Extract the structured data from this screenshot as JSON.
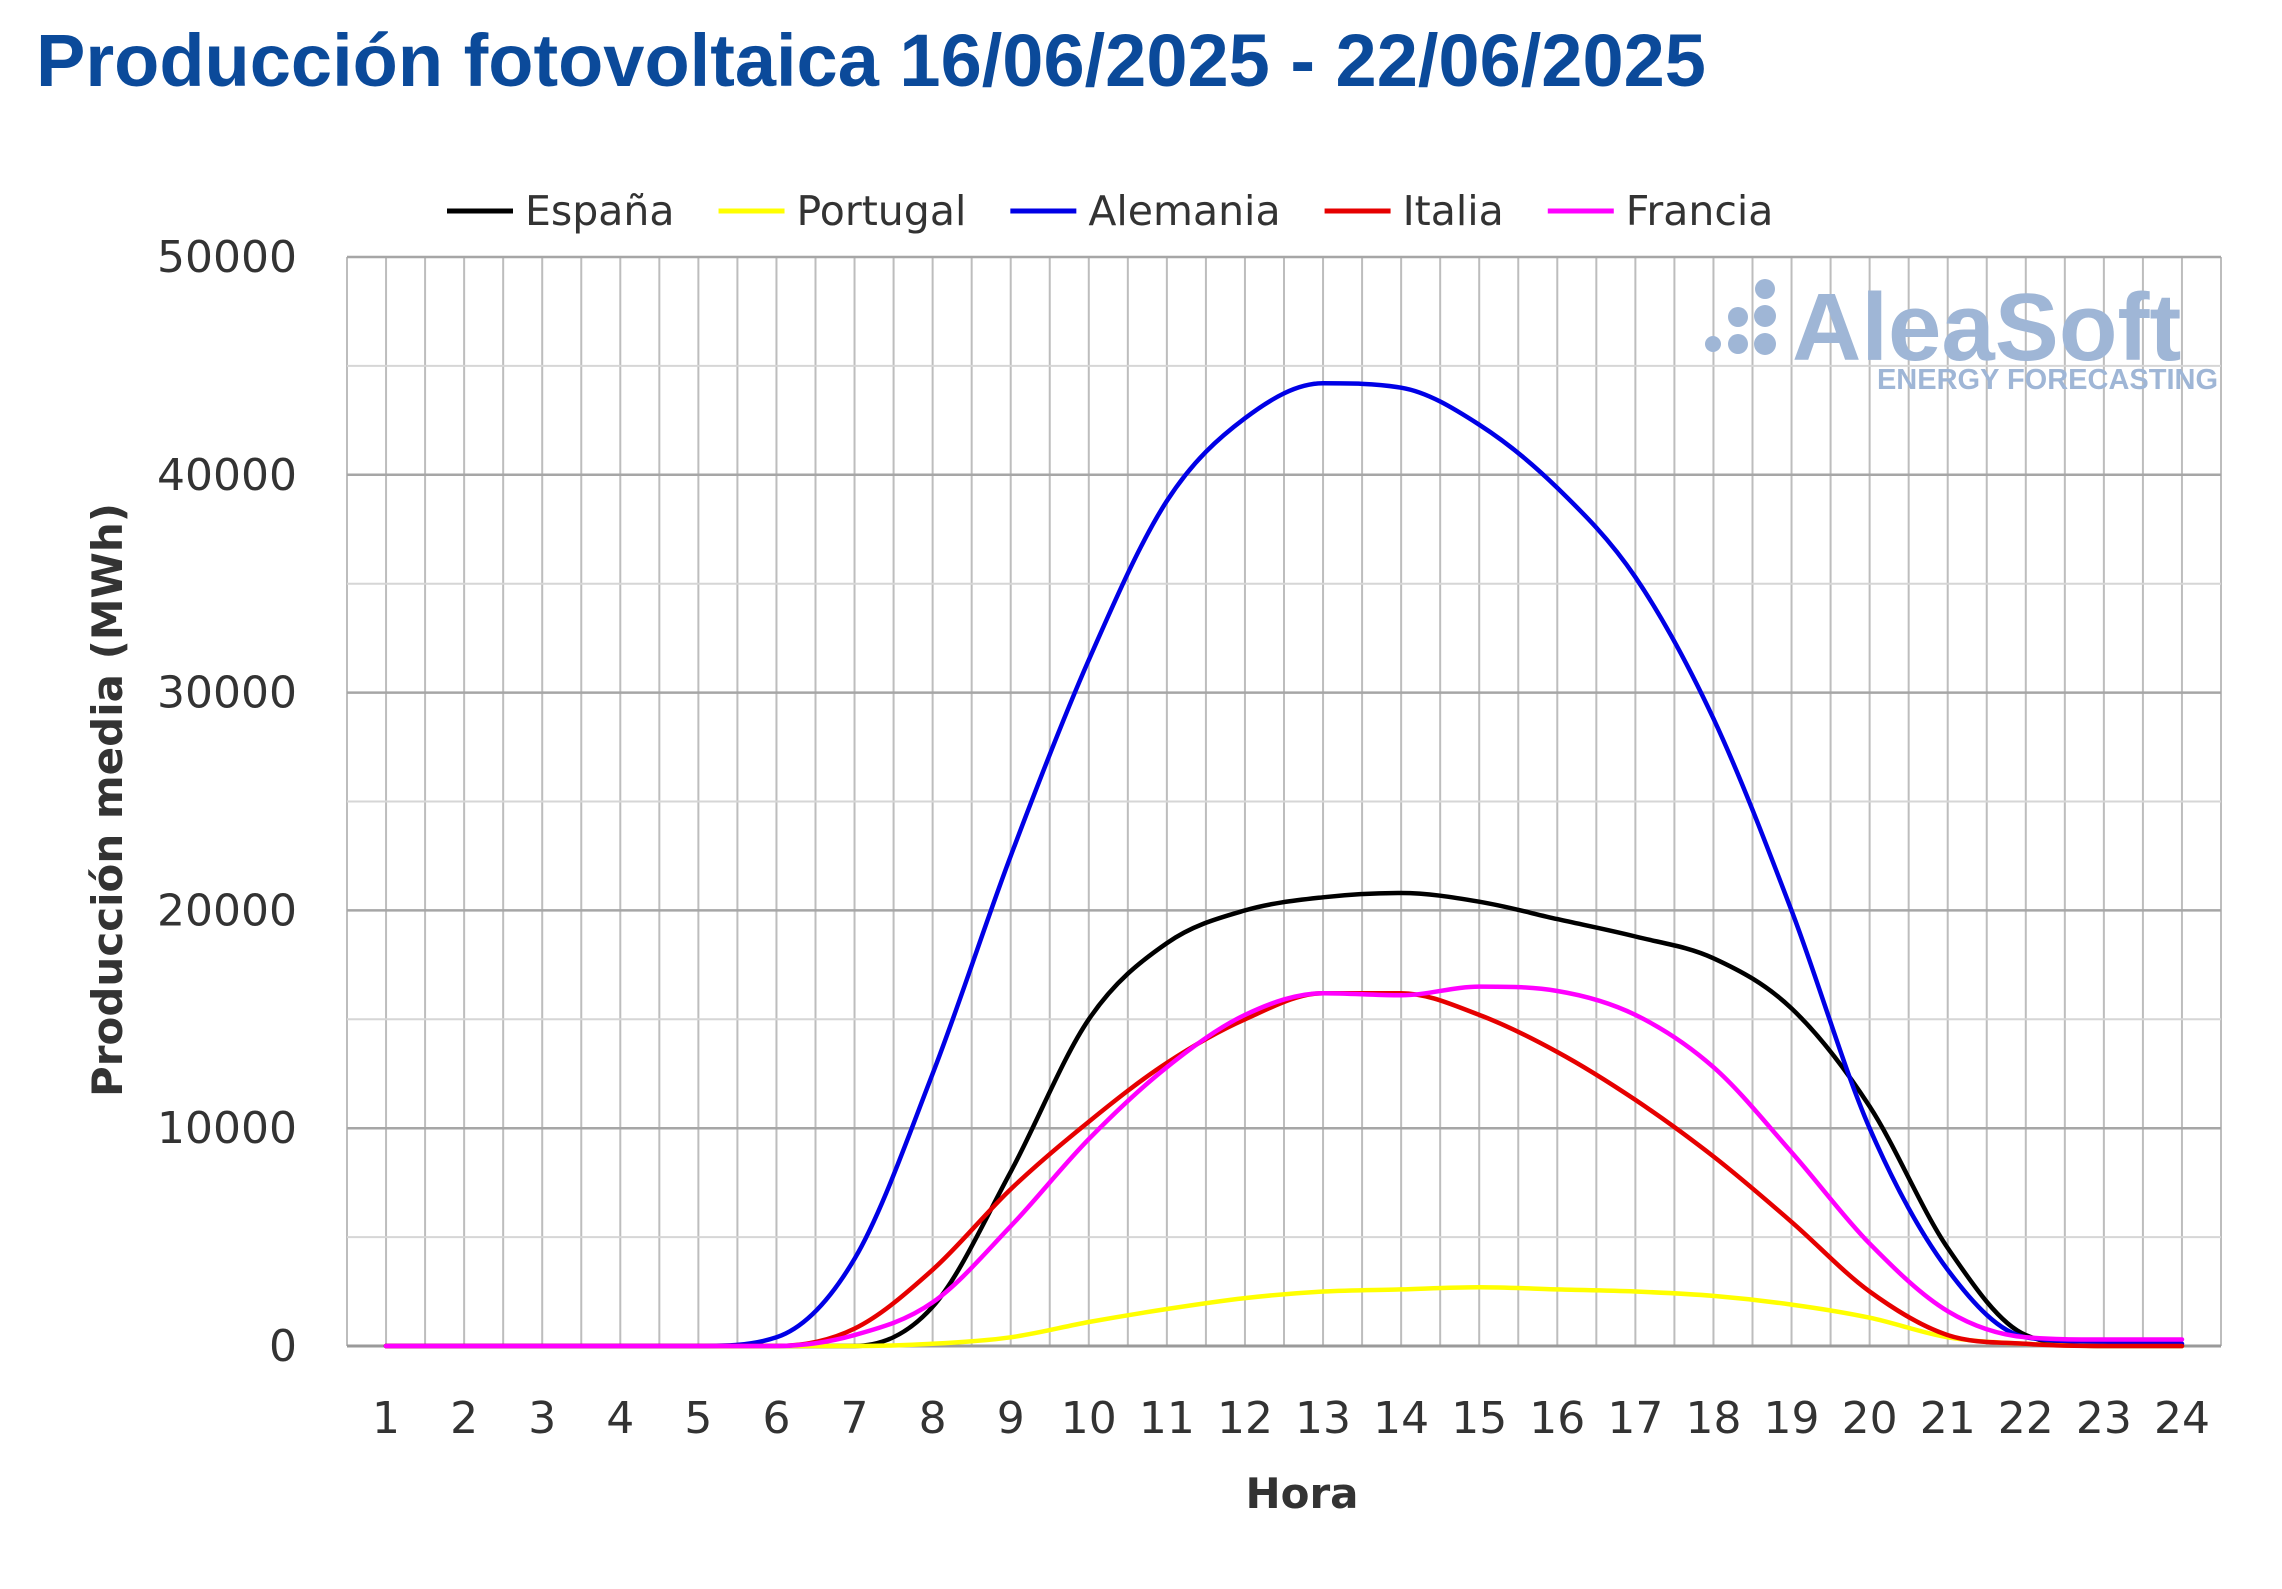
{
  "page": {
    "title": "Producción fotovoltaica 16/06/2025 - 22/06/2025"
  },
  "watermark": {
    "brand": "AleaSoft",
    "tagline": "ENERGY FORECASTING",
    "color": "#9fb6d6"
  },
  "chart_data": {
    "type": "line",
    "title": "Producción fotovoltaica 16/06/2025 - 22/06/2025",
    "xlabel": "Hora",
    "ylabel": "Producción media (MWh)",
    "x": [
      1,
      2,
      3,
      4,
      5,
      6,
      7,
      8,
      9,
      10,
      11,
      12,
      13,
      14,
      15,
      16,
      17,
      18,
      19,
      20,
      21,
      22,
      23,
      24
    ],
    "ylim": [
      0,
      50000
    ],
    "yticks": [
      0,
      10000,
      20000,
      30000,
      40000,
      50000
    ],
    "grid": true,
    "legend_position": "top",
    "series": [
      {
        "name": "España",
        "color": "#000000",
        "values": [
          0,
          0,
          0,
          0,
          0,
          0,
          0,
          1800,
          8000,
          15000,
          18500,
          20000,
          20600,
          20800,
          20400,
          19600,
          18800,
          17800,
          15500,
          11000,
          4500,
          500,
          0,
          0
        ]
      },
      {
        "name": "Portugal",
        "color": "#ffff00",
        "values": [
          0,
          0,
          0,
          0,
          0,
          0,
          0,
          100,
          400,
          1100,
          1700,
          2200,
          2500,
          2600,
          2700,
          2600,
          2500,
          2300,
          1900,
          1300,
          400,
          100,
          0,
          0
        ]
      },
      {
        "name": "Alemania",
        "color": "#0000e6",
        "values": [
          0,
          0,
          0,
          0,
          0,
          400,
          4000,
          12500,
          22500,
          31500,
          38800,
          42600,
          44200,
          44000,
          42300,
          39400,
          35300,
          28800,
          20000,
          10000,
          3500,
          400,
          200,
          100
        ]
      },
      {
        "name": "Italia",
        "color": "#e60000",
        "values": [
          0,
          0,
          0,
          0,
          0,
          0,
          800,
          3500,
          7200,
          10300,
          13000,
          15000,
          16200,
          16200,
          15200,
          13500,
          11300,
          8700,
          5700,
          2500,
          500,
          100,
          0,
          0
        ]
      },
      {
        "name": "Francia",
        "color": "#ff00ff",
        "values": [
          0,
          0,
          0,
          0,
          0,
          0,
          500,
          2000,
          5500,
          9500,
          12800,
          15200,
          16200,
          16100,
          16500,
          16300,
          15200,
          12800,
          8900,
          4700,
          1600,
          400,
          300,
          300
        ]
      }
    ]
  }
}
